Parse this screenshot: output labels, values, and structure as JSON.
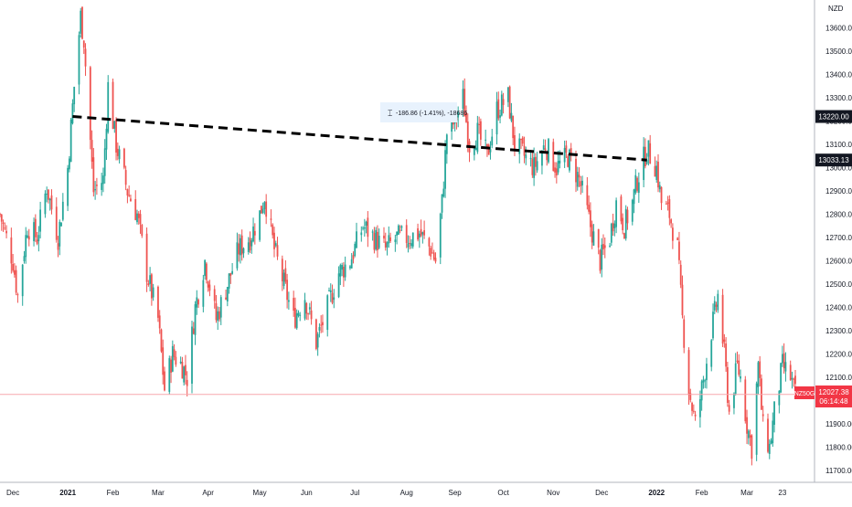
{
  "chart_data": {
    "type": "candlestick",
    "symbol": "NZ50G",
    "currency": "NZD",
    "ylim": [
      11650,
      13720
    ],
    "y_ticks": [
      11700,
      11800,
      11900,
      12000,
      12100,
      12200,
      12300,
      12400,
      12500,
      12600,
      12700,
      12800,
      12900,
      13000,
      13100,
      13200,
      13300,
      13400,
      13500,
      13600
    ],
    "y_tick_labels": [
      "11700.00",
      "11800.00",
      "11900.00",
      "12000.00",
      "12100.00",
      "12200.00",
      "12300.00",
      "12400.00",
      "12500.00",
      "12600.00",
      "12700.00",
      "12800.00",
      "12900.00",
      "13000.00",
      "13100.00",
      "13200.00",
      "13300.00",
      "13400.00",
      "13500.00",
      "13600.00"
    ],
    "x_ticks": [
      {
        "label": "Dec",
        "bold": false,
        "time": "2020-12-01"
      },
      {
        "label": "2021",
        "bold": true,
        "time": "2021-01-04"
      },
      {
        "label": "Feb",
        "bold": false,
        "time": "2021-02-01"
      },
      {
        "label": "Mar",
        "bold": false,
        "time": "2021-03-01"
      },
      {
        "label": "Apr",
        "bold": false,
        "time": "2021-04-01"
      },
      {
        "label": "May",
        "bold": false,
        "time": "2021-05-03"
      },
      {
        "label": "Jun",
        "bold": false,
        "time": "2021-06-01"
      },
      {
        "label": "Jul",
        "bold": false,
        "time": "2021-07-01"
      },
      {
        "label": "Aug",
        "bold": false,
        "time": "2021-08-02"
      },
      {
        "label": "Sep",
        "bold": false,
        "time": "2021-09-01"
      },
      {
        "label": "Oct",
        "bold": false,
        "time": "2021-10-01"
      },
      {
        "label": "Nov",
        "bold": false,
        "time": "2021-11-01"
      },
      {
        "label": "Dec",
        "bold": false,
        "time": "2021-12-01"
      },
      {
        "label": "2022",
        "bold": true,
        "time": "2022-01-04"
      },
      {
        "label": "Feb",
        "bold": false,
        "time": "2022-02-01"
      },
      {
        "label": "Mar",
        "bold": false,
        "time": "2022-03-01"
      },
      {
        "label": "23",
        "bold": false,
        "time": "2022-03-23"
      }
    ],
    "x_range": [
      "2020-11-23",
      "2022-03-31"
    ],
    "price_path": [
      {
        "time": "2020-11-23",
        "close": 12800
      },
      {
        "time": "2020-12-01",
        "close": 12600
      },
      {
        "time": "2020-12-04",
        "close": 12450
      },
      {
        "time": "2020-12-10",
        "close": 12750
      },
      {
        "time": "2020-12-16",
        "close": 12700
      },
      {
        "time": "2020-12-22",
        "close": 12920
      },
      {
        "time": "2020-12-29",
        "close": 12700
      },
      {
        "time": "2021-01-04",
        "close": 13000
      },
      {
        "time": "2021-01-08",
        "close": 13350
      },
      {
        "time": "2021-01-12",
        "close": 13650
      },
      {
        "time": "2021-01-14",
        "close": 13550
      },
      {
        "time": "2021-01-20",
        "close": 12900
      },
      {
        "time": "2021-01-26",
        "close": 12950
      },
      {
        "time": "2021-01-29",
        "close": 13350
      },
      {
        "time": "2021-02-03",
        "close": 13100
      },
      {
        "time": "2021-02-10",
        "close": 12900
      },
      {
        "time": "2021-02-16",
        "close": 12800
      },
      {
        "time": "2021-02-22",
        "close": 12550
      },
      {
        "time": "2021-03-01",
        "close": 12350
      },
      {
        "time": "2021-03-05",
        "close": 12050
      },
      {
        "time": "2021-03-10",
        "close": 12200
      },
      {
        "time": "2021-03-16",
        "close": 12150
      },
      {
        "time": "2021-03-19",
        "close": 12100
      },
      {
        "time": "2021-03-24",
        "close": 12400
      },
      {
        "time": "2021-03-30",
        "close": 12600
      },
      {
        "time": "2021-04-06",
        "close": 12350
      },
      {
        "time": "2021-04-13",
        "close": 12500
      },
      {
        "time": "2021-04-20",
        "close": 12650
      },
      {
        "time": "2021-04-27",
        "close": 12700
      },
      {
        "time": "2021-05-03",
        "close": 12800
      },
      {
        "time": "2021-05-06",
        "close": 12880
      },
      {
        "time": "2021-05-12",
        "close": 12650
      },
      {
        "time": "2021-05-18",
        "close": 12500
      },
      {
        "time": "2021-05-24",
        "close": 12350
      },
      {
        "time": "2021-05-31",
        "close": 12450
      },
      {
        "time": "2021-06-07",
        "close": 12250
      },
      {
        "time": "2021-06-14",
        "close": 12400
      },
      {
        "time": "2021-06-21",
        "close": 12550
      },
      {
        "time": "2021-06-28",
        "close": 12600
      },
      {
        "time": "2021-07-06",
        "close": 12750
      },
      {
        "time": "2021-07-13",
        "close": 12700
      },
      {
        "time": "2021-07-20",
        "close": 12650
      },
      {
        "time": "2021-07-27",
        "close": 12700
      },
      {
        "time": "2021-08-03",
        "close": 12700
      },
      {
        "time": "2021-08-10",
        "close": 12720
      },
      {
        "time": "2021-08-17",
        "close": 12650
      },
      {
        "time": "2021-08-20",
        "close": 12600
      },
      {
        "time": "2021-08-24",
        "close": 12850
      },
      {
        "time": "2021-08-27",
        "close": 13150
      },
      {
        "time": "2021-09-01",
        "close": 13200
      },
      {
        "time": "2021-09-06",
        "close": 13300
      },
      {
        "time": "2021-09-10",
        "close": 13100
      },
      {
        "time": "2021-09-15",
        "close": 13150
      },
      {
        "time": "2021-09-21",
        "close": 13050
      },
      {
        "time": "2021-09-27",
        "close": 13250
      },
      {
        "time": "2021-10-04",
        "close": 13300
      },
      {
        "time": "2021-10-08",
        "close": 13100
      },
      {
        "time": "2021-10-14",
        "close": 13050
      },
      {
        "time": "2021-10-20",
        "close": 13000
      },
      {
        "time": "2021-10-27",
        "close": 13100
      },
      {
        "time": "2021-11-03",
        "close": 13000
      },
      {
        "time": "2021-11-10",
        "close": 13050
      },
      {
        "time": "2021-11-17",
        "close": 12950
      },
      {
        "time": "2021-11-24",
        "close": 12750
      },
      {
        "time": "2021-11-30",
        "close": 12600
      },
      {
        "time": "2021-12-06",
        "close": 12700
      },
      {
        "time": "2021-12-10",
        "close": 12850
      },
      {
        "time": "2021-12-15",
        "close": 12750
      },
      {
        "time": "2021-12-20",
        "close": 12850
      },
      {
        "time": "2021-12-23",
        "close": 12950
      },
      {
        "time": "2021-12-29",
        "close": 13080
      },
      {
        "time": "2022-01-04",
        "close": 13000
      },
      {
        "time": "2022-01-07",
        "close": 12850
      },
      {
        "time": "2022-01-12",
        "close": 12800
      },
      {
        "time": "2022-01-17",
        "close": 12650
      },
      {
        "time": "2022-01-20",
        "close": 12350
      },
      {
        "time": "2022-01-24",
        "close": 12050
      },
      {
        "time": "2022-01-28",
        "close": 11900
      },
      {
        "time": "2022-02-01",
        "close": 12050
      },
      {
        "time": "2022-02-07",
        "close": 12300
      },
      {
        "time": "2022-02-11",
        "close": 12450
      },
      {
        "time": "2022-02-15",
        "close": 12200
      },
      {
        "time": "2022-02-18",
        "close": 11950
      },
      {
        "time": "2022-02-23",
        "close": 12150
      },
      {
        "time": "2022-02-25",
        "close": 12100
      },
      {
        "time": "2022-03-01",
        "close": 11900
      },
      {
        "time": "2022-03-04",
        "close": 11800
      },
      {
        "time": "2022-03-08",
        "close": 12150
      },
      {
        "time": "2022-03-11",
        "close": 11880
      },
      {
        "time": "2022-03-15",
        "close": 11800
      },
      {
        "time": "2022-03-18",
        "close": 11950
      },
      {
        "time": "2022-03-23",
        "close": 12150
      },
      {
        "time": "2022-03-28",
        "close": 12100
      },
      {
        "time": "2022-03-31",
        "close": 12027.38
      }
    ],
    "trendline": {
      "start": {
        "time": "2021-01-07",
        "value": 13220.0
      },
      "end": {
        "time": "2021-12-29",
        "value": 13033.13
      },
      "style": "dashed"
    },
    "measure_label": "-186.86 (-1.41%), -18686",
    "last_price": 12027.38,
    "price_labels": [
      {
        "text": "13220.00",
        "value": 13220.0,
        "fill": "#131722",
        "color": "#ffffff"
      },
      {
        "text": "13033.13",
        "value": 13033.13,
        "fill": "#131722",
        "color": "#ffffff"
      }
    ],
    "last_price_label": {
      "text": "12027.38",
      "countdown": "06:14:48",
      "color": "#f23645"
    },
    "colors": {
      "up": "#26a69a",
      "down": "#ef5350",
      "last_price_line": "#f7a8ad",
      "trendline": "#000000",
      "text": "#131722",
      "axis": "#b2b5be"
    },
    "grid": false,
    "legend": "none"
  }
}
